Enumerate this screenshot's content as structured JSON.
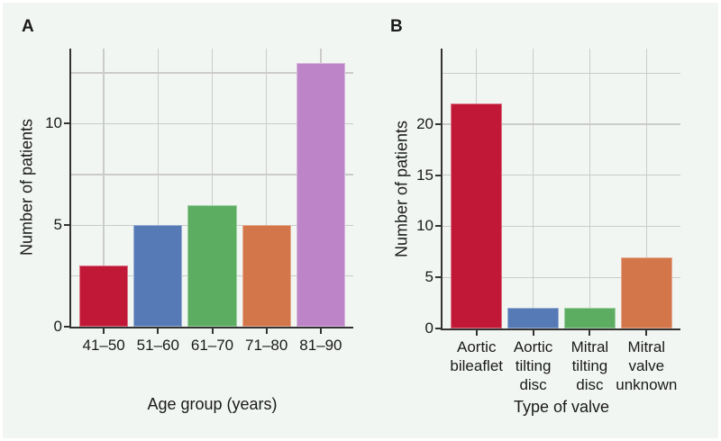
{
  "figure": {
    "type": "two-panel bar figure",
    "background": "#f2f6f2",
    "gridline_color": "#cbcbcb",
    "axis_color": "#333333",
    "text_color": "#1a1a1a"
  },
  "chart_data": [
    {
      "type": "bar",
      "panel": "A",
      "title": "",
      "xlabel": "Age group (years)",
      "ylabel": "Number of patients",
      "categories": [
        "41–50",
        "51–60",
        "61–70",
        "71–80",
        "81–90"
      ],
      "values": [
        3,
        5,
        6,
        5,
        13
      ],
      "bar_colors": [
        "#c11837",
        "#557ab6",
        "#5cad62",
        "#d3764a",
        "#bd85c8"
      ],
      "ylim": [
        0,
        13.7
      ],
      "yticks": [
        0,
        5,
        10
      ],
      "gridlines_y": [
        2.5,
        5,
        7.5,
        10,
        12.5
      ],
      "grid": "major horizontal and vertical, light gray",
      "legend": "none"
    },
    {
      "type": "bar",
      "panel": "B",
      "title": "",
      "xlabel": "Type of valve",
      "ylabel": "Number of patients",
      "categories": [
        "Aortic\nbileaflet",
        "Aortic\ntilting\ndisc",
        "Mitral\ntilting\ndisc",
        "Mitral\nvalve\nunknown"
      ],
      "values": [
        22,
        2,
        2,
        7
      ],
      "bar_colors": [
        "#c11837",
        "#557ab6",
        "#5cad62",
        "#d3764a"
      ],
      "ylim": [
        0,
        27.4
      ],
      "yticks": [
        0,
        5,
        10,
        15,
        20
      ],
      "gridlines_y": [
        5,
        10,
        15,
        20,
        25
      ],
      "grid": "major horizontal and vertical, light gray",
      "legend": "none"
    }
  ]
}
